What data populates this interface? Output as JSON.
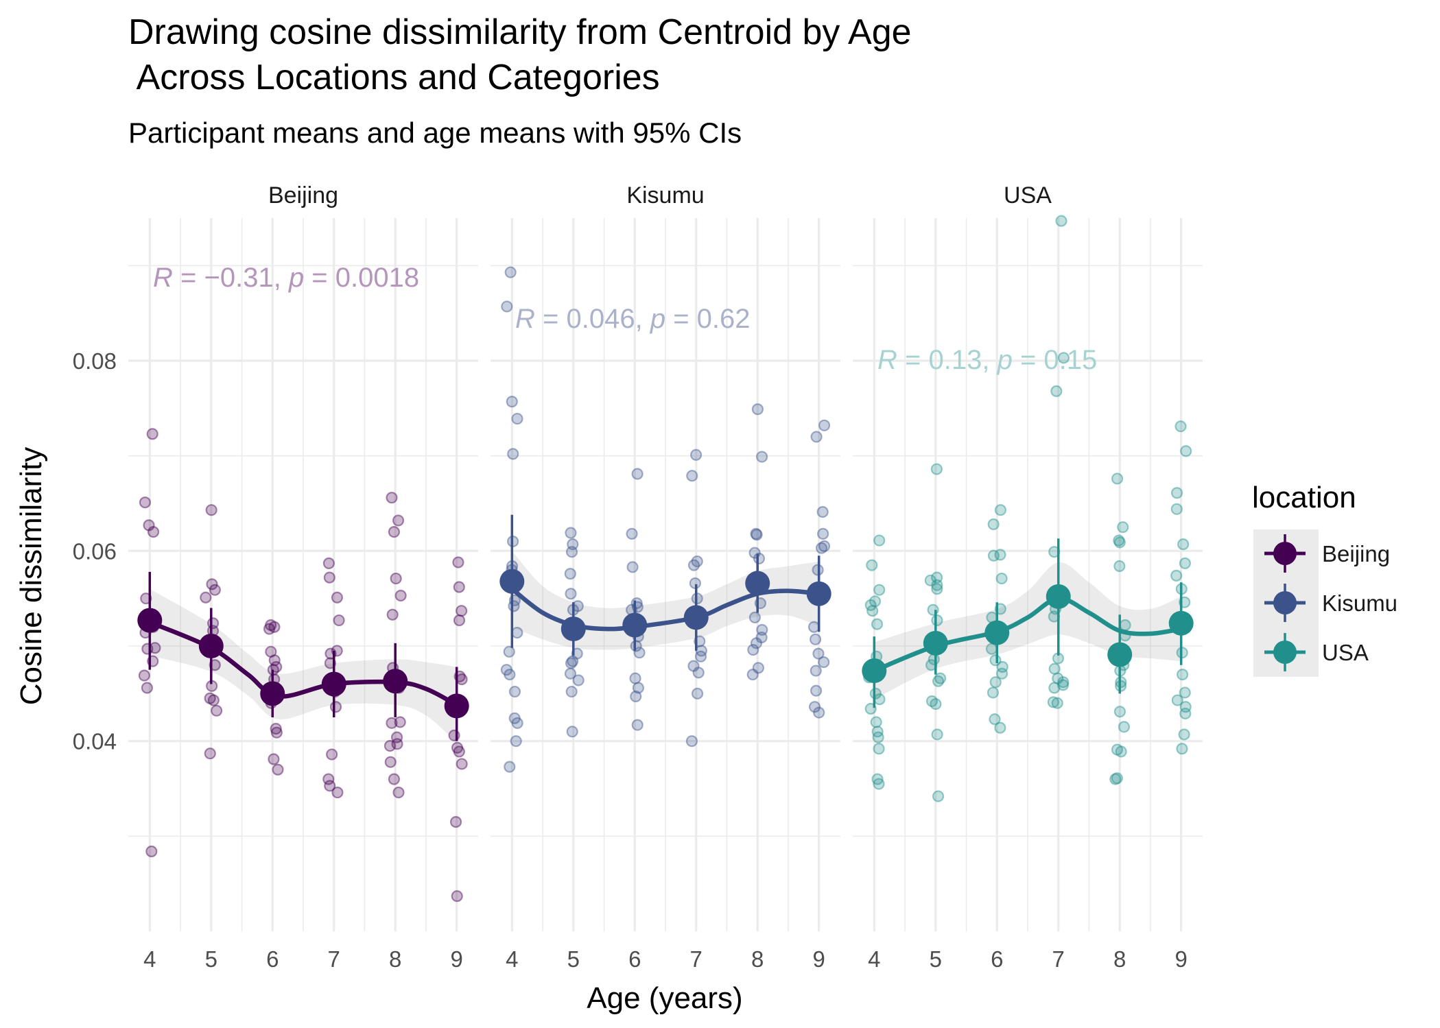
{
  "chart_data": {
    "type": "scatter",
    "title_lines": [
      "Drawing cosine dissimilarity from Centroid by Age",
      " Across Locations and Categories"
    ],
    "subtitle": "Participant means and age means with 95% CIs",
    "xlabel": "Age (years)",
    "ylabel": "Cosine dissimilarity",
    "x_ticks": [
      "4",
      "5",
      "6",
      "7",
      "8",
      "9"
    ],
    "y_ticks": [
      "0.04",
      "0.06",
      "0.08"
    ],
    "ylim": [
      0.02,
      0.095
    ],
    "xlim": [
      3.65,
      9.35
    ],
    "grid": true,
    "legend": {
      "title": "location",
      "placement": "right",
      "entries": [
        {
          "label": "Beijing",
          "color": "#440154"
        },
        {
          "label": "Kisumu",
          "color": "#3b528b"
        },
        {
          "label": "USA",
          "color": "#21908c"
        }
      ]
    },
    "facets": [
      {
        "name": "Beijing",
        "color": "#440154",
        "annotation": {
          "R": "−0.31",
          "p": "0.0018",
          "color": "#b596bb"
        },
        "age_means": [
          {
            "x": 4,
            "y": 0.0527,
            "lo": 0.0475,
            "hi": 0.0578
          },
          {
            "x": 5,
            "y": 0.05,
            "lo": 0.046,
            "hi": 0.054
          },
          {
            "x": 6,
            "y": 0.045,
            "lo": 0.0425,
            "hi": 0.0475
          },
          {
            "x": 7,
            "y": 0.046,
            "lo": 0.0425,
            "hi": 0.0495
          },
          {
            "x": 8,
            "y": 0.0463,
            "lo": 0.0425,
            "hi": 0.0503
          },
          {
            "x": 9,
            "y": 0.0437,
            "lo": 0.04,
            "hi": 0.0478
          }
        ],
        "smooth": [
          {
            "x": 4,
            "y": 0.0525
          },
          {
            "x": 5,
            "y": 0.0498
          },
          {
            "x": 5.6,
            "y": 0.047
          },
          {
            "x": 6.1,
            "y": 0.0447
          },
          {
            "x": 7,
            "y": 0.046
          },
          {
            "x": 8,
            "y": 0.0462
          },
          {
            "x": 8.5,
            "y": 0.0455
          },
          {
            "x": 9,
            "y": 0.0438
          }
        ],
        "smooth_band": [
          0.0035,
          0.0025,
          0.0022,
          0.0024,
          0.0022,
          0.0024,
          0.0028,
          0.004
        ],
        "points": [
          {
            "x": 4,
            "ys": [
              0.0723,
              0.0651,
              0.0627,
              0.062,
              0.055,
              0.052,
              0.0514,
              0.0498,
              0.0497,
              0.0484,
              0.0469,
              0.0456,
              0.0284
            ]
          },
          {
            "x": 5,
            "ys": [
              0.0643,
              0.0565,
              0.0559,
              0.0551,
              0.0524,
              0.0516,
              0.048,
              0.0458,
              0.0445,
              0.0443,
              0.0432,
              0.0387
            ]
          },
          {
            "x": 6,
            "ys": [
              0.0522,
              0.052,
              0.0518,
              0.0494,
              0.0485,
              0.0478,
              0.0475,
              0.0465,
              0.044,
              0.0413,
              0.0409,
              0.0381,
              0.037
            ]
          },
          {
            "x": 7,
            "ys": [
              0.0587,
              0.0572,
              0.0551,
              0.0527,
              0.0495,
              0.0492,
              0.0482,
              0.0452,
              0.0436,
              0.0386,
              0.036,
              0.0353,
              0.0346
            ]
          },
          {
            "x": 8,
            "ys": [
              0.0656,
              0.0632,
              0.062,
              0.0571,
              0.0553,
              0.0533,
              0.0477,
              0.0456,
              0.042,
              0.0419,
              0.0404,
              0.0397,
              0.0395,
              0.0378,
              0.036,
              0.0346
            ]
          },
          {
            "x": 9,
            "ys": [
              0.0588,
              0.0562,
              0.0537,
              0.0527,
              0.0468,
              0.0465,
              0.0406,
              0.0393,
              0.0389,
              0.0376,
              0.0315,
              0.0237
            ]
          }
        ]
      },
      {
        "name": "Kisumu",
        "color": "#3b528b",
        "annotation": {
          "R": "0.046",
          "p": "0.62",
          "color": "#aab2cb"
        },
        "age_means": [
          {
            "x": 4,
            "y": 0.0568,
            "lo": 0.0498,
            "hi": 0.0638
          },
          {
            "x": 5,
            "y": 0.0518,
            "lo": 0.049,
            "hi": 0.0546
          },
          {
            "x": 6,
            "y": 0.0522,
            "lo": 0.0495,
            "hi": 0.0548
          },
          {
            "x": 7,
            "y": 0.053,
            "lo": 0.0495,
            "hi": 0.0565
          },
          {
            "x": 8,
            "y": 0.0566,
            "lo": 0.0535,
            "hi": 0.0597
          },
          {
            "x": 9,
            "y": 0.0555,
            "lo": 0.0515,
            "hi": 0.0595
          }
        ],
        "smooth": [
          {
            "x": 4,
            "y": 0.056
          },
          {
            "x": 4.5,
            "y": 0.0535
          },
          {
            "x": 5,
            "y": 0.0522
          },
          {
            "x": 5.5,
            "y": 0.0518
          },
          {
            "x": 6,
            "y": 0.052
          },
          {
            "x": 7,
            "y": 0.053
          },
          {
            "x": 7.5,
            "y": 0.0543
          },
          {
            "x": 8,
            "y": 0.0555
          },
          {
            "x": 8.5,
            "y": 0.0558
          },
          {
            "x": 9,
            "y": 0.0555
          }
        ],
        "smooth_band": [
          0.004,
          0.0028,
          0.0024,
          0.0022,
          0.0022,
          0.0022,
          0.0022,
          0.0024,
          0.0026,
          0.0034
        ],
        "points": [
          {
            "x": 4,
            "ys": [
              0.0893,
              0.0857,
              0.0757,
              0.0739,
              0.0702,
              0.061,
              0.0584,
              0.058,
              0.0548,
              0.0542,
              0.0514,
              0.0494,
              0.0475,
              0.047,
              0.0452,
              0.0424,
              0.0419,
              0.04,
              0.0373
            ]
          },
          {
            "x": 5,
            "ys": [
              0.0619,
              0.0607,
              0.0599,
              0.0576,
              0.0555,
              0.0542,
              0.0538,
              0.052,
              0.0492,
              0.0484,
              0.0482,
              0.0471,
              0.0464,
              0.0452,
              0.041
            ]
          },
          {
            "x": 6,
            "ys": [
              0.0681,
              0.0618,
              0.0583,
              0.0545,
              0.0541,
              0.0538,
              0.052,
              0.0517,
              0.051,
              0.05,
              0.0493,
              0.0466,
              0.0456,
              0.0447,
              0.0417
            ]
          },
          {
            "x": 7,
            "ys": [
              0.0701,
              0.0679,
              0.0589,
              0.0585,
              0.0566,
              0.055,
              0.0526,
              0.0505,
              0.0495,
              0.0489,
              0.0479,
              0.0472,
              0.045,
              0.04
            ]
          },
          {
            "x": 8,
            "ys": [
              0.0749,
              0.0699,
              0.0618,
              0.0617,
              0.0598,
              0.0592,
              0.0573,
              0.0562,
              0.0545,
              0.053,
              0.0517,
              0.0509,
              0.0503,
              0.0496,
              0.0477,
              0.047
            ]
          },
          {
            "x": 9,
            "ys": [
              0.0732,
              0.072,
              0.0641,
              0.0618,
              0.0605,
              0.0603,
              0.058,
              0.0559,
              0.052,
              0.0507,
              0.0492,
              0.0483,
              0.0474,
              0.0453,
              0.0436,
              0.043
            ]
          }
        ]
      },
      {
        "name": "USA",
        "color": "#21908c",
        "annotation": {
          "R": "0.13",
          "p": "0.15",
          "color": "#a6d3d1"
        },
        "age_means": [
          {
            "x": 4,
            "y": 0.0474,
            "lo": 0.0435,
            "hi": 0.051
          },
          {
            "x": 5,
            "y": 0.0503,
            "lo": 0.047,
            "hi": 0.0538
          },
          {
            "x": 6,
            "y": 0.0514,
            "lo": 0.0482,
            "hi": 0.0546
          },
          {
            "x": 7,
            "y": 0.0552,
            "lo": 0.049,
            "hi": 0.0613
          },
          {
            "x": 8,
            "y": 0.0491,
            "lo": 0.045,
            "hi": 0.0533
          },
          {
            "x": 9,
            "y": 0.0524,
            "lo": 0.048,
            "hi": 0.0567
          }
        ],
        "smooth": [
          {
            "x": 4,
            "y": 0.0474
          },
          {
            "x": 5,
            "y": 0.05
          },
          {
            "x": 6,
            "y": 0.0515
          },
          {
            "x": 6.5,
            "y": 0.053
          },
          {
            "x": 7,
            "y": 0.055
          },
          {
            "x": 7.5,
            "y": 0.0535
          },
          {
            "x": 8,
            "y": 0.0516
          },
          {
            "x": 8.5,
            "y": 0.0513
          },
          {
            "x": 9,
            "y": 0.0518
          }
        ],
        "smooth_band": [
          0.003,
          0.0024,
          0.0024,
          0.0028,
          0.0038,
          0.0032,
          0.0026,
          0.0026,
          0.0034
        ],
        "points": [
          {
            "x": 4,
            "ys": [
              0.0611,
              0.0585,
              0.0559,
              0.0547,
              0.0543,
              0.0537,
              0.0523,
              0.0489,
              0.0467,
              0.045,
              0.0444,
              0.0434,
              0.042,
              0.041,
              0.0404,
              0.0392,
              0.036,
              0.0355
            ]
          },
          {
            "x": 5,
            "ys": [
              0.0686,
              0.0572,
              0.0569,
              0.0564,
              0.056,
              0.0538,
              0.0527,
              0.0486,
              0.048,
              0.0466,
              0.0463,
              0.0442,
              0.0439,
              0.0407,
              0.0342
            ]
          },
          {
            "x": 6,
            "ys": [
              0.0643,
              0.0628,
              0.0596,
              0.0595,
              0.0571,
              0.0539,
              0.053,
              0.052,
              0.0508,
              0.0497,
              0.0485,
              0.0478,
              0.0471,
              0.0462,
              0.0451,
              0.0423,
              0.0414
            ]
          },
          {
            "x": 7,
            "ys": [
              0.0947,
              0.0803,
              0.0768,
              0.0599,
              0.0539,
              0.0531,
              0.0487,
              0.0476,
              0.0466,
              0.0462,
              0.0459,
              0.0456,
              0.0441,
              0.044
            ]
          },
          {
            "x": 8,
            "ys": [
              0.0676,
              0.0625,
              0.0611,
              0.0609,
              0.0584,
              0.0522,
              0.0511,
              0.048,
              0.0474,
              0.0462,
              0.0458,
              0.0431,
              0.0415,
              0.0391,
              0.0389,
              0.0361,
              0.036
            ]
          },
          {
            "x": 9,
            "ys": [
              0.0731,
              0.0705,
              0.0661,
              0.0644,
              0.0607,
              0.0587,
              0.0574,
              0.056,
              0.0546,
              0.0521,
              0.0493,
              0.047,
              0.0451,
              0.0443,
              0.0436,
              0.0429,
              0.0407,
              0.0392
            ]
          }
        ]
      }
    ]
  }
}
